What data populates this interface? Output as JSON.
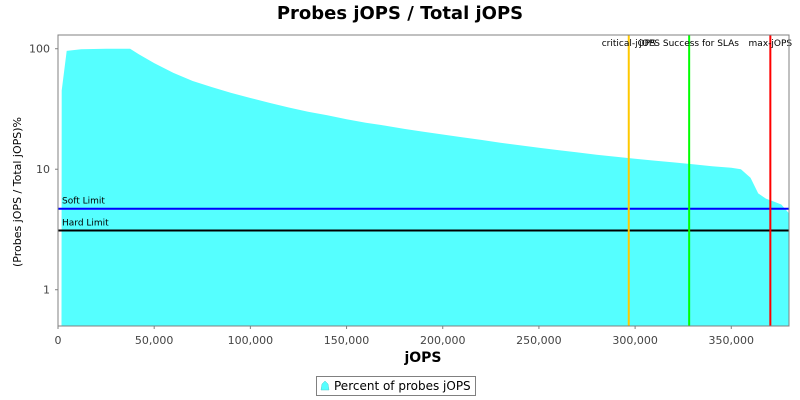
{
  "chart_data": {
    "type": "area",
    "title": "Probes jOPS / Total jOPS",
    "xlabel": "jOPS",
    "ylabel": "(Probes jOPS / Total jOPS)%",
    "x_range": [
      0,
      380000
    ],
    "y_range": [
      0.5,
      130
    ],
    "y_scale": "log",
    "x_ticks": [
      {
        "value": 0,
        "label": "0"
      },
      {
        "value": 50000,
        "label": "50,000"
      },
      {
        "value": 100000,
        "label": "100,000"
      },
      {
        "value": 150000,
        "label": "150,000"
      },
      {
        "value": 200000,
        "label": "200,000"
      },
      {
        "value": 250000,
        "label": "250,000"
      },
      {
        "value": 300000,
        "label": "300,000"
      },
      {
        "value": 350000,
        "label": "350,000"
      }
    ],
    "y_ticks": [
      {
        "value": 1,
        "label": "1"
      },
      {
        "value": 10,
        "label": "10"
      },
      {
        "value": 100,
        "label": "100"
      }
    ],
    "series": [
      {
        "name": "Percent of probes jOPS",
        "color": "#55ffff",
        "points": [
          [
            1800,
            0.5
          ],
          [
            1900,
            45
          ],
          [
            4500,
            96
          ],
          [
            12000,
            99
          ],
          [
            25000,
            100
          ],
          [
            37500,
            100
          ],
          [
            42000,
            90
          ],
          [
            50000,
            76
          ],
          [
            60000,
            63
          ],
          [
            70000,
            54
          ],
          [
            80000,
            48
          ],
          [
            90000,
            43
          ],
          [
            100000,
            39
          ],
          [
            110000,
            35.5
          ],
          [
            120000,
            32.5
          ],
          [
            130000,
            30
          ],
          [
            140000,
            28
          ],
          [
            150000,
            26
          ],
          [
            160000,
            24.3
          ],
          [
            170000,
            23
          ],
          [
            180000,
            21.6
          ],
          [
            190000,
            20.5
          ],
          [
            200000,
            19.4
          ],
          [
            210000,
            18.4
          ],
          [
            220000,
            17.5
          ],
          [
            230000,
            16.6
          ],
          [
            240000,
            15.8
          ],
          [
            250000,
            15.1
          ],
          [
            260000,
            14.4
          ],
          [
            270000,
            13.8
          ],
          [
            280000,
            13.2
          ],
          [
            290000,
            12.7
          ],
          [
            300000,
            12.2
          ],
          [
            310000,
            11.8
          ],
          [
            320000,
            11.4
          ],
          [
            330000,
            11
          ],
          [
            340000,
            10.6
          ],
          [
            350000,
            10.3
          ],
          [
            355000,
            10
          ],
          [
            360000,
            8.5
          ],
          [
            364000,
            6.3
          ],
          [
            368000,
            5.7
          ],
          [
            372000,
            5.4
          ],
          [
            376000,
            5.1
          ],
          [
            380000,
            4.3
          ]
        ]
      }
    ],
    "horizontal_lines": [
      {
        "label": "Soft Limit",
        "value": 4.7,
        "color": "#0000ff"
      },
      {
        "label": "Hard Limit",
        "value": 3.1,
        "color": "#000000"
      }
    ],
    "vertical_lines": [
      {
        "label": "critical-jOPS",
        "value": 296700,
        "color": "#ffc800"
      },
      {
        "label": "jOPS Success for SLAs",
        "value": 328100,
        "color": "#00ff00"
      },
      {
        "label": "max-jOPS",
        "value": 370300,
        "color": "#ff0000"
      }
    ],
    "legend": {
      "position": "bottom",
      "label": "Percent of probes jOPS"
    }
  }
}
